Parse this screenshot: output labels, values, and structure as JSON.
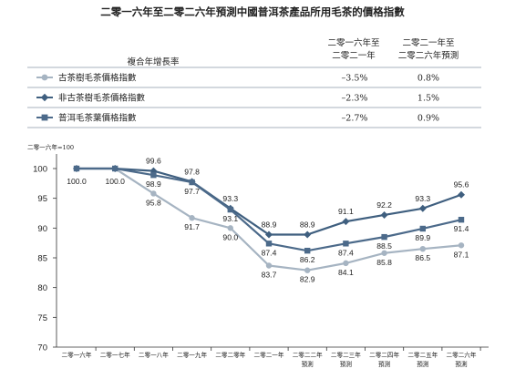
{
  "chart_data": {
    "type": "line",
    "title": "二零一六年至二零二六年預測中國普洱茶產品所用毛茶的價格指數",
    "table": {
      "row_header": "複合年增長率",
      "col_headers": [
        [
          "二零一六年至",
          "二零二一年"
        ],
        [
          "二零二一年至",
          "二零二六年預測"
        ]
      ]
    },
    "base_note": "二零一六年=100",
    "x_labels": [
      [
        "二零一六年"
      ],
      [
        "二零一七年"
      ],
      [
        "二零一八年"
      ],
      [
        "二零一九年"
      ],
      [
        "二零二零年"
      ],
      [
        "二零二一年"
      ],
      [
        "二零二二年",
        "預測"
      ],
      [
        "二零二三年",
        "預測"
      ],
      [
        "二零二四年",
        "預測"
      ],
      [
        "二零二五年",
        "預測"
      ],
      [
        "二零二六年",
        "預測"
      ]
    ],
    "ylim": [
      70,
      100
    ],
    "yticks": [
      70,
      75,
      80,
      85,
      90,
      95,
      100
    ],
    "grid": false,
    "legend_position": "top",
    "series": [
      {
        "name": "古茶樹毛茶價格指數",
        "marker": "circle",
        "color": "#a6b4c2",
        "cagr": [
          "–3.5%",
          "0.8%"
        ],
        "values": [
          100.0,
          100.0,
          95.8,
          91.7,
          90.0,
          83.7,
          82.9,
          84.1,
          85.8,
          86.5,
          87.1
        ],
        "labels": [
          "",
          "",
          "95.8",
          "91.7",
          "90.0",
          "83.7",
          "82.9",
          "84.1",
          "85.8",
          "86.5",
          "87.1"
        ]
      },
      {
        "name": "非古茶樹毛茶價格指數",
        "marker": "diamond",
        "color": "#3f5f7f",
        "cagr": [
          "–2.3%",
          "1.5%"
        ],
        "values": [
          100.0,
          100.0,
          99.6,
          97.8,
          93.3,
          88.9,
          88.9,
          91.1,
          92.2,
          93.3,
          95.6
        ],
        "labels": [
          "100.0",
          "100.0",
          "99.6",
          "97.8",
          "93.3",
          "88.9",
          "88.9",
          "91.1",
          "92.2",
          "93.3",
          "95.6"
        ]
      },
      {
        "name": "普洱毛茶葉價格指數",
        "marker": "square",
        "color": "#4c6a8a",
        "cagr": [
          "–2.7%",
          "0.9%"
        ],
        "values": [
          100.0,
          100.0,
          98.9,
          97.7,
          93.1,
          87.4,
          86.2,
          87.4,
          88.5,
          89.9,
          91.4
        ],
        "labels": [
          "",
          "",
          "98.9",
          "97.7",
          "93.1",
          "87.4",
          "86.2",
          "87.4",
          "88.5",
          "89.9",
          "91.4"
        ]
      }
    ]
  }
}
